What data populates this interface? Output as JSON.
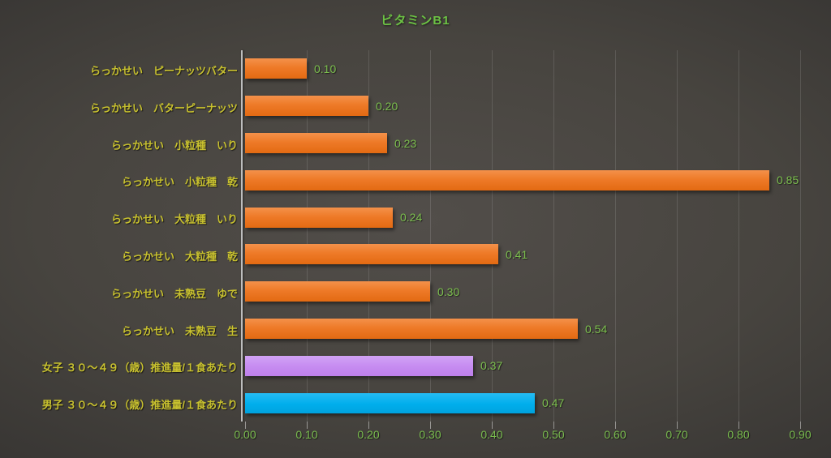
{
  "chart_data": {
    "type": "bar",
    "orientation": "horizontal",
    "title": "ビタミンB1",
    "categories": [
      "らっかせい　ピーナッツバター",
      "らっかせい　バターピーナッツ",
      "らっかせい　小粒種　いり",
      "らっかせい　小粒種　乾",
      "らっかせい　大粒種　いり",
      "らっかせい　大粒種　乾",
      "らっかせい　未熟豆　ゆで",
      "らっかせい　未熟豆　生",
      "女子 ３０～４９（歳）推進量/１食あたり",
      "男子 ３０～４９（歳）推進量/１食あたり"
    ],
    "values": [
      0.1,
      0.2,
      0.23,
      0.85,
      0.24,
      0.41,
      0.3,
      0.54,
      0.37,
      0.47
    ],
    "value_labels": [
      "0.10",
      "0.20",
      "0.23",
      "0.85",
      "0.24",
      "0.41",
      "0.30",
      "0.54",
      "0.37",
      "0.47"
    ],
    "bar_color_keys": [
      "orange",
      "orange",
      "orange",
      "orange",
      "orange",
      "orange",
      "orange",
      "orange",
      "purple",
      "blue"
    ],
    "x_ticks": [
      "0.00",
      "0.10",
      "0.20",
      "0.30",
      "0.40",
      "0.50",
      "0.60",
      "0.70",
      "0.80",
      "0.90"
    ],
    "xlim": [
      0.0,
      0.94
    ],
    "grid": true,
    "legend": "none",
    "colors": {
      "bar_orange": "#ED7A28",
      "bar_purple": "#C78DF1",
      "bar_blue": "#00AEEC",
      "title_text": "#6CC244",
      "value_text": "#7CBF4E",
      "axis_text": "#79BC4E",
      "category_text": "#C8C12F",
      "gridline": "rgba(255,255,255,0.12)",
      "axis_line": "#BDBDBD",
      "background_center": "#4F4B47",
      "background_edge": "#272727"
    }
  }
}
